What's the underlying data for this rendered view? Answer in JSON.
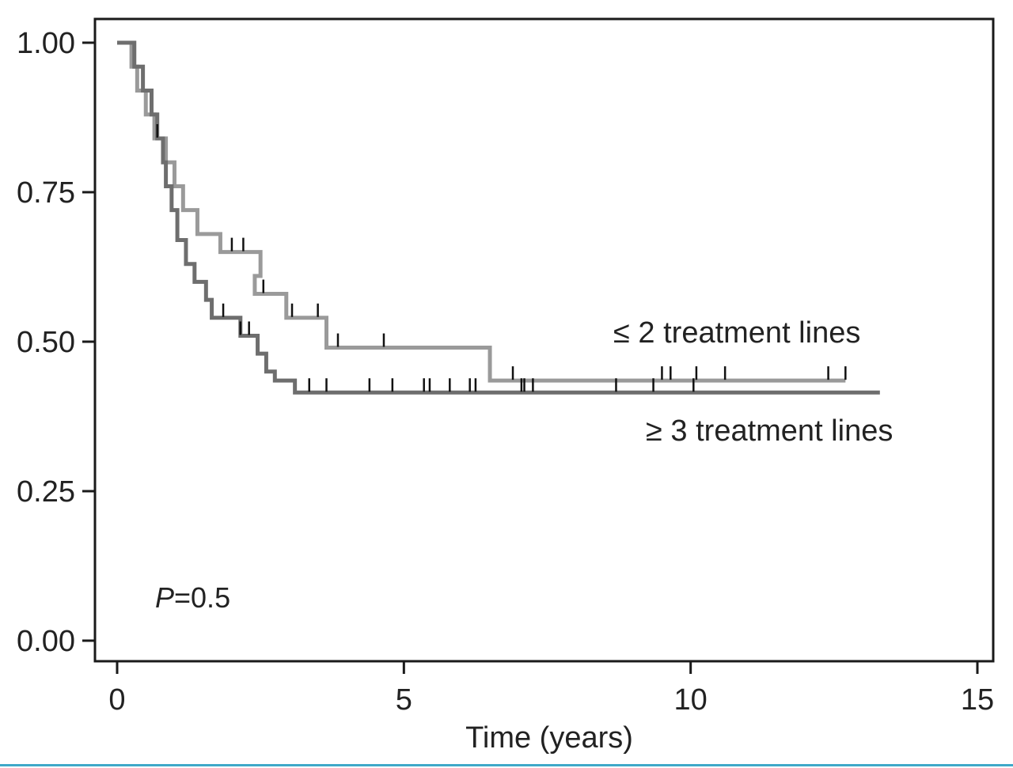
{
  "chart_data": {
    "type": "line",
    "subtype": "kaplan-meier",
    "title": "",
    "xlabel": "Time (years)",
    "ylabel": "",
    "xlim": [
      0,
      15
    ],
    "ylim": [
      0,
      1
    ],
    "x_ticks": [
      0,
      5,
      10,
      15
    ],
    "x_tick_labels": [
      "0",
      "5",
      "10",
      "15"
    ],
    "y_ticks": [
      0,
      0.25,
      0.5,
      0.75,
      1.0
    ],
    "y_tick_labels": [
      "0.00",
      "0.25",
      "0.50",
      "0.75",
      "1.00"
    ],
    "annotations": [
      {
        "text": "≤ 2 treatment lines",
        "series": "≤ 2 treatment lines"
      },
      {
        "text": "≥ 3 treatment lines",
        "series": "≥ 3 treatment lines"
      }
    ],
    "pvalue": {
      "label": "P",
      "text": "=0.5"
    },
    "series": [
      {
        "name": "≤ 2 treatment lines",
        "color": "#9a9a9a",
        "steps": [
          [
            0,
            1.0
          ],
          [
            0.25,
            0.96
          ],
          [
            0.35,
            0.92
          ],
          [
            0.5,
            0.88
          ],
          [
            0.65,
            0.84
          ],
          [
            0.85,
            0.8
          ],
          [
            1.0,
            0.76
          ],
          [
            1.15,
            0.72
          ],
          [
            1.4,
            0.68
          ],
          [
            1.8,
            0.65
          ],
          [
            2.5,
            0.61
          ],
          [
            2.4,
            0.61
          ],
          [
            2.4,
            0.61
          ],
          [
            2.4,
            0.58
          ],
          [
            2.95,
            0.54
          ],
          [
            3.6,
            0.54
          ],
          [
            3.6,
            0.54
          ],
          [
            3.65,
            0.49
          ],
          [
            6.5,
            0.435
          ],
          [
            12.7,
            0.435
          ]
        ],
        "censor": [
          0.3,
          2.0,
          2.2,
          2.55,
          3.05,
          3.5,
          3.85,
          4.65,
          6.9,
          9.5,
          9.65,
          10.1,
          10.6,
          12.4,
          12.7
        ]
      },
      {
        "name": "≥ 3 treatment lines",
        "color": "#6e6e6e",
        "steps": [
          [
            0,
            1.0
          ],
          [
            0.3,
            0.96
          ],
          [
            0.45,
            0.92
          ],
          [
            0.6,
            0.88
          ],
          [
            0.7,
            0.84
          ],
          [
            0.8,
            0.8
          ],
          [
            0.85,
            0.76
          ],
          [
            0.95,
            0.72
          ],
          [
            1.05,
            0.67
          ],
          [
            1.2,
            0.63
          ],
          [
            1.35,
            0.6
          ],
          [
            1.55,
            0.57
          ],
          [
            1.65,
            0.54
          ],
          [
            2.15,
            0.51
          ],
          [
            2.45,
            0.48
          ],
          [
            2.6,
            0.45
          ],
          [
            2.75,
            0.435
          ],
          [
            3.1,
            0.415
          ],
          [
            13.3,
            0.415
          ]
        ],
        "censor": [
          0.7,
          1.85,
          2.15,
          2.3,
          3.35,
          3.65,
          4.4,
          4.8,
          5.35,
          5.45,
          5.8,
          6.15,
          6.25,
          7.05,
          7.1,
          7.25,
          8.7,
          9.35,
          10.05
        ]
      }
    ]
  }
}
